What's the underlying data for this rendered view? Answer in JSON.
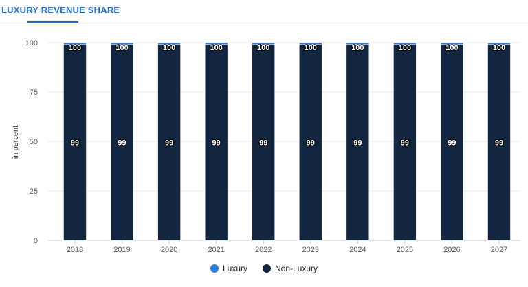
{
  "header": {
    "title": "LUXURY REVENUE SHARE"
  },
  "chart_data": {
    "type": "bar",
    "stacked": true,
    "categories": [
      "2018",
      "2019",
      "2020",
      "2021",
      "2022",
      "2023",
      "2024",
      "2025",
      "2026",
      "2027"
    ],
    "series": [
      {
        "name": "Luxury",
        "color": "#2f7ed8",
        "values": [
          1,
          1,
          1,
          1,
          1,
          1,
          1,
          1,
          1,
          1
        ]
      },
      {
        "name": "Non-Luxury",
        "color": "#12263f",
        "values": [
          99,
          99,
          99,
          99,
          99,
          99,
          99,
          99,
          99,
          99
        ]
      }
    ],
    "total_labels": [
      "100",
      "100",
      "100",
      "100",
      "100",
      "100",
      "100",
      "100",
      "100",
      "100"
    ],
    "ylabel": "in percent",
    "ylim": [
      0,
      100
    ],
    "yticks": [
      0,
      25,
      50,
      75,
      100
    ],
    "grid": true,
    "legend_position": "bottom-center"
  }
}
